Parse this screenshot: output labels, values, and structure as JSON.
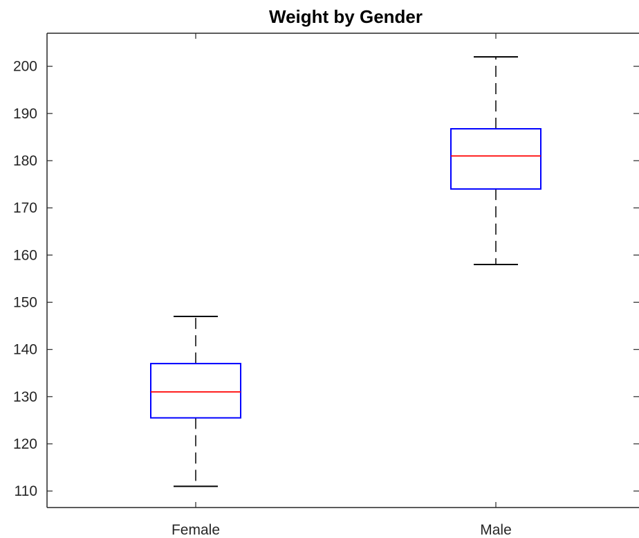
{
  "chart_data": {
    "type": "box",
    "title": "Weight by Gender",
    "xlabel": "",
    "ylabel": "",
    "categories": [
      "Female",
      "Male"
    ],
    "ylim": [
      106.5,
      207
    ],
    "yticks": [
      110,
      120,
      130,
      140,
      150,
      160,
      170,
      180,
      190,
      200
    ],
    "grid": false,
    "legend": "none",
    "boxes": [
      {
        "label": "Female",
        "min": 111,
        "q1": 125.5,
        "median": 131,
        "q3": 137,
        "max": 147
      },
      {
        "label": "Male",
        "min": 158,
        "q1": 174,
        "median": 181,
        "q3": 186.75,
        "max": 202
      }
    ],
    "colors": {
      "box": "#0000ff",
      "median": "#ff0000",
      "whisker": "#000000",
      "axis": "#262626"
    }
  }
}
